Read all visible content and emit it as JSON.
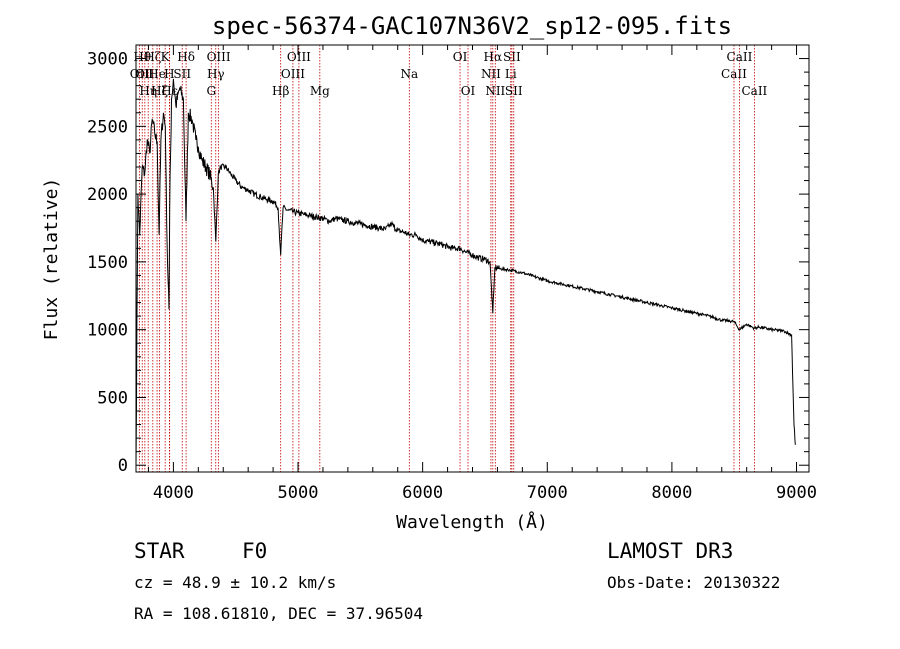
{
  "chart_data": {
    "type": "line",
    "title": "spec-56374-GAC107N36V2_sp12-095.fits",
    "xlabel": "Wavelength (Å)",
    "ylabel": "Flux (relative)",
    "xlim": [
      3700,
      9100
    ],
    "ylim": [
      -50,
      3100
    ],
    "xticks": [
      4000,
      5000,
      6000,
      7000,
      8000,
      9000
    ],
    "yticks": [
      0,
      500,
      1000,
      1500,
      2000,
      2500,
      3000
    ],
    "series": [
      {
        "name": "flux",
        "x": [
          3700,
          3715,
          3730,
          3750,
          3770,
          3790,
          3810,
          3830,
          3850,
          3870,
          3885,
          3900,
          3920,
          3935,
          3950,
          3965,
          3970,
          3985,
          4000,
          4020,
          4050,
          4080,
          4101,
          4120,
          4150,
          4180,
          4200,
          4230,
          4260,
          4290,
          4320,
          4340,
          4360,
          4380,
          4420,
          4460,
          4500,
          4550,
          4600,
          4650,
          4700,
          4750,
          4800,
          4840,
          4861,
          4880,
          4920,
          4960,
          5000,
          5050,
          5100,
          5150,
          5200,
          5250,
          5300,
          5350,
          5400,
          5450,
          5500,
          5550,
          5600,
          5650,
          5700,
          5750,
          5800,
          5850,
          5890,
          5950,
          6000,
          6050,
          6100,
          6150,
          6200,
          6250,
          6300,
          6350,
          6400,
          6450,
          6500,
          6540,
          6563,
          6580,
          6620,
          6700,
          6800,
          6900,
          7000,
          7100,
          7200,
          7300,
          7400,
          7500,
          7600,
          7700,
          7800,
          7900,
          8000,
          8100,
          8200,
          8300,
          8400,
          8498,
          8542,
          8600,
          8662,
          8700,
          8800,
          8900,
          8960,
          8980,
          8990
        ],
        "y": [
          0,
          2000,
          1700,
          2200,
          2150,
          2400,
          2300,
          2550,
          2450,
          2380,
          1700,
          2400,
          2600,
          2500,
          1600,
          1150,
          1900,
          2700,
          2850,
          2650,
          2780,
          2700,
          1800,
          2600,
          2550,
          2400,
          2350,
          2250,
          2200,
          2150,
          2050,
          1650,
          2150,
          2200,
          2200,
          2150,
          2100,
          2050,
          2030,
          2000,
          1980,
          1960,
          1950,
          1900,
          1550,
          1900,
          1880,
          1870,
          1860,
          1850,
          1840,
          1830,
          1820,
          1800,
          1820,
          1810,
          1800,
          1790,
          1780,
          1770,
          1760,
          1750,
          1740,
          1780,
          1730,
          1720,
          1700,
          1700,
          1660,
          1650,
          1640,
          1630,
          1610,
          1600,
          1600,
          1570,
          1550,
          1530,
          1520,
          1500,
          1120,
          1460,
          1450,
          1440,
          1420,
          1390,
          1360,
          1340,
          1320,
          1300,
          1280,
          1260,
          1240,
          1220,
          1200,
          1180,
          1160,
          1140,
          1120,
          1100,
          1070,
          1060,
          1000,
          1040,
          1010,
          1020,
          1000,
          990,
          960,
          300,
          150
        ]
      }
    ],
    "lines": [
      {
        "w": 3727,
        "label": "OII",
        "row": 2
      },
      {
        "w": 3750,
        "label": "Hθ",
        "row": 1
      },
      {
        "w": 3771,
        "label": "OII",
        "row": 2
      },
      {
        "w": 3798,
        "label": "Hη",
        "row": 3
      },
      {
        "w": 3835,
        "label": "Hζ",
        "row": 1
      },
      {
        "w": 3869,
        "label": "He",
        "row": 2
      },
      {
        "w": 3889,
        "label": "Hζ",
        "row": 3
      },
      {
        "w": 3934,
        "label": "K",
        "row": 1
      },
      {
        "w": 3968,
        "label": "H",
        "row": 2
      },
      {
        "w": 3970,
        "label": "Hε",
        "row": 3
      },
      {
        "w": 4071,
        "label": "SII",
        "row": 2
      },
      {
        "w": 4102,
        "label": "Hδ",
        "row": 1
      },
      {
        "w": 4304,
        "label": "G",
        "row": 3
      },
      {
        "w": 4340,
        "label": "Hγ",
        "row": 2
      },
      {
        "w": 4363,
        "label": "OIII",
        "row": 1
      },
      {
        "w": 4861,
        "label": "Hβ",
        "row": 3
      },
      {
        "w": 4959,
        "label": "OIII",
        "row": 2
      },
      {
        "w": 5007,
        "label": "OIII",
        "row": 1
      },
      {
        "w": 5175,
        "label": "Mg",
        "row": 3
      },
      {
        "w": 5893,
        "label": "Na",
        "row": 2
      },
      {
        "w": 6300,
        "label": "OI",
        "row": 1
      },
      {
        "w": 6364,
        "label": "OI",
        "row": 3
      },
      {
        "w": 6548,
        "label": "NII",
        "row": 2
      },
      {
        "w": 6563,
        "label": "Hα",
        "row": 1
      },
      {
        "w": 6583,
        "label": "NII",
        "row": 3
      },
      {
        "w": 6707,
        "label": "Li",
        "row": 2
      },
      {
        "w": 6716,
        "label": "SII",
        "row": 1
      },
      {
        "w": 6731,
        "label": "SII",
        "row": 3
      },
      {
        "w": 8498,
        "label": "CaII",
        "row": 2
      },
      {
        "w": 8542,
        "label": "CaII",
        "row": 1
      },
      {
        "w": 8662,
        "label": "CaII",
        "row": 3
      }
    ]
  },
  "info": {
    "class": "STAR",
    "subclass": "F0",
    "survey": "LAMOST DR3",
    "cz": "cz = 48.9 ± 10.2 km/s",
    "obs_date": "Obs-Date: 20130322",
    "coords": "RA = 108.61810, DEC =  37.96504"
  }
}
